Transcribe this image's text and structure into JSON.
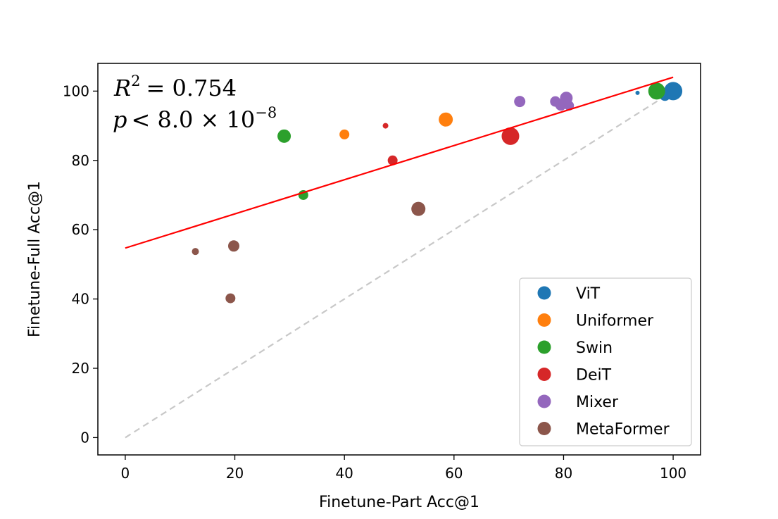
{
  "chart_data": {
    "type": "scatter",
    "xlabel": "Finetune-Part Acc@1",
    "ylabel": "Finetune-Full Acc@1",
    "xlim": [
      -5,
      105
    ],
    "ylim": [
      -5,
      108
    ],
    "xticks": [
      0,
      20,
      40,
      60,
      80,
      100
    ],
    "yticks": [
      0,
      20,
      40,
      60,
      80,
      100
    ],
    "grid": false,
    "legend_position": "lower-right",
    "annotations": {
      "r2_var": "R",
      "r2_exp": "2",
      "r2_value": "= 0.754",
      "p_var": "p",
      "p_value": "< 8.0 × 10",
      "p_exp": "−8"
    },
    "fit_line": {
      "x": [
        0,
        100
      ],
      "y": [
        54.7,
        104
      ],
      "color": "#ff0000"
    },
    "identity_line": {
      "x": [
        0,
        100
      ],
      "y": [
        0,
        100
      ],
      "color": "#c8c8c8"
    },
    "series": [
      {
        "name": "ViT",
        "color": "#1f77b4",
        "points": [
          {
            "x": 100,
            "y": 100,
            "size": 13
          },
          {
            "x": 98.5,
            "y": 98.8,
            "size": 8
          },
          {
            "x": 93.5,
            "y": 99.5,
            "size": 3
          }
        ]
      },
      {
        "name": "Uniformer",
        "color": "#ff7f0e",
        "points": [
          {
            "x": 40,
            "y": 87.5,
            "size": 7
          },
          {
            "x": 58.5,
            "y": 91.8,
            "size": 10
          }
        ]
      },
      {
        "name": "Swin",
        "color": "#2ca02c",
        "points": [
          {
            "x": 29,
            "y": 87,
            "size": 9.5
          },
          {
            "x": 32.5,
            "y": 70,
            "size": 7
          },
          {
            "x": 97,
            "y": 100,
            "size": 12
          }
        ]
      },
      {
        "name": "DeiT",
        "color": "#d62728",
        "points": [
          {
            "x": 47.5,
            "y": 90,
            "size": 4
          },
          {
            "x": 48.8,
            "y": 80,
            "size": 7
          },
          {
            "x": 70.3,
            "y": 87,
            "size": 12.5
          }
        ]
      },
      {
        "name": "Mixer",
        "color": "#9467bd",
        "points": [
          {
            "x": 72,
            "y": 97,
            "size": 8
          },
          {
            "x": 78.5,
            "y": 97,
            "size": 7.5
          },
          {
            "x": 79.5,
            "y": 96,
            "size": 8
          },
          {
            "x": 80.5,
            "y": 98,
            "size": 9
          },
          {
            "x": 81,
            "y": 95.8,
            "size": 7
          }
        ]
      },
      {
        "name": "MetaFormer",
        "color": "#8c564b",
        "points": [
          {
            "x": 12.8,
            "y": 53.7,
            "size": 5
          },
          {
            "x": 19.2,
            "y": 40.2,
            "size": 7
          },
          {
            "x": 19.8,
            "y": 55.3,
            "size": 8
          },
          {
            "x": 53.5,
            "y": 66,
            "size": 10
          }
        ]
      }
    ]
  }
}
